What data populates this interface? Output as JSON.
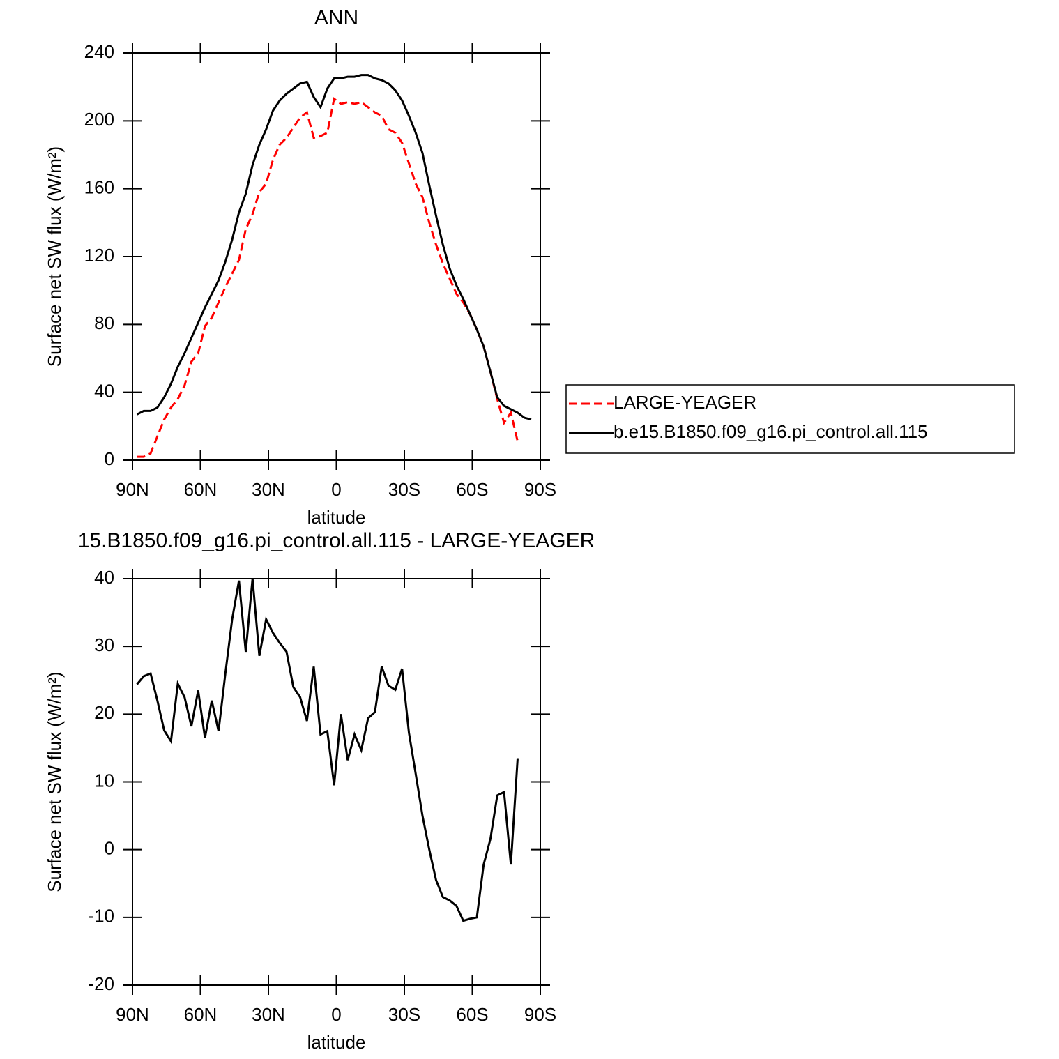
{
  "chart_data": [
    {
      "type": "line",
      "title": "ANN",
      "xlabel": "latitude",
      "ylabel": "Surface net SW flux (W/m²)",
      "x": [
        88,
        85,
        82,
        79,
        76,
        73,
        70,
        67,
        64,
        61,
        58,
        55,
        52,
        49,
        46,
        43,
        40,
        37,
        34,
        31,
        28,
        25,
        22,
        19,
        16,
        13,
        10,
        7,
        4,
        1,
        -2,
        -5,
        -8,
        -11,
        -14,
        -17,
        -20,
        -23,
        -26,
        -29,
        -32,
        -35,
        -38,
        -41,
        -44,
        -47,
        -50,
        -53,
        -56,
        -59,
        -62,
        -65,
        -68,
        -71,
        -74,
        -77,
        -80,
        -83,
        -86
      ],
      "xlim": [
        90,
        -90
      ],
      "xticks": [
        {
          "value": 90,
          "label": "90N"
        },
        {
          "value": 60,
          "label": "60N"
        },
        {
          "value": 30,
          "label": "30N"
        },
        0,
        {
          "value": -30,
          "label": "30S"
        },
        {
          "value": -60,
          "label": "60S"
        },
        {
          "value": -90,
          "label": "90S"
        }
      ],
      "ylim": [
        0,
        240
      ],
      "yticks": [
        0,
        40,
        80,
        120,
        160,
        200,
        240
      ],
      "legend": "right",
      "series": [
        {
          "name": "LARGE-YEAGER",
          "color": "#ff0000",
          "line_style": "dashed",
          "values": [
            2,
            2,
            4,
            14,
            24,
            31,
            36,
            44,
            58,
            63,
            79,
            84,
            93,
            102,
            110,
            118,
            136,
            145,
            158,
            163,
            177,
            186,
            190,
            196,
            202,
            205,
            190,
            191,
            193,
            213,
            210,
            211,
            210,
            211,
            208,
            205,
            203,
            195,
            193,
            187,
            175,
            163,
            155,
            140,
            127,
            116,
            107,
            98,
            93,
            86,
            77,
            67,
            52,
            36,
            22,
            28,
            11,
            null,
            null
          ]
        },
        {
          "name": "b.e15.B1850.f09_g16.pi_control.all.115",
          "color": "#000000",
          "line_style": "solid",
          "values": [
            27,
            29,
            29,
            31,
            37,
            45,
            55,
            63,
            72,
            81,
            90,
            98,
            106,
            117,
            130,
            146,
            157,
            174,
            186,
            195,
            206,
            212,
            216,
            219,
            222,
            223,
            214,
            208,
            219,
            225,
            225,
            226,
            226,
            227,
            227,
            225,
            224,
            222,
            218,
            212,
            203,
            193,
            181,
            162,
            144,
            127,
            113,
            103,
            95,
            86,
            77,
            67,
            52,
            37,
            32,
            30,
            28,
            25,
            24
          ]
        }
      ]
    },
    {
      "type": "line",
      "title": "15.B1850.f09_g16.pi_control.all.115 - LARGE-YEAGER",
      "xlabel": "latitude",
      "ylabel": "Surface net SW flux (W/m²)",
      "x": [
        88,
        85,
        82,
        79,
        76,
        73,
        70,
        67,
        64,
        61,
        58,
        55,
        52,
        49,
        46,
        43,
        40,
        37,
        34,
        31,
        28,
        25,
        22,
        19,
        16,
        13,
        10,
        7,
        4,
        1,
        -2,
        -5,
        -8,
        -11,
        -14,
        -17,
        -20,
        -23,
        -26,
        -29,
        -32,
        -35,
        -38,
        -41,
        -44,
        -47,
        -50,
        -53,
        -56,
        -59,
        -62,
        -65,
        -68,
        -71,
        -74,
        -77,
        -80,
        -83,
        -86
      ],
      "xlim": [
        90,
        -90
      ],
      "xticks": [
        {
          "value": 90,
          "label": "90N"
        },
        {
          "value": 60,
          "label": "60N"
        },
        {
          "value": 30,
          "label": "30N"
        },
        0,
        {
          "value": -30,
          "label": "30S"
        },
        {
          "value": -60,
          "label": "60S"
        },
        {
          "value": -90,
          "label": "90S"
        }
      ],
      "ylim": [
        -20,
        40
      ],
      "yticks": [
        -20,
        -10,
        0,
        10,
        20,
        30,
        40
      ],
      "series": [
        {
          "color": "#000000",
          "line_style": "solid",
          "values": [
            24.4,
            25.6,
            26,
            22,
            17.6,
            16,
            24.5,
            22.5,
            18.2,
            23.5,
            16.5,
            22,
            17.5,
            26,
            34,
            39.7,
            29.2,
            40,
            28.6,
            34,
            32,
            30.5,
            29.2,
            24,
            22.5,
            19,
            27,
            17,
            17.5,
            9.5,
            20,
            13.2,
            17,
            14.7,
            19.4,
            20.3,
            27,
            24.2,
            23.6,
            26.7,
            17.3,
            11.2,
            5,
            0,
            -4.5,
            -7,
            -7.5,
            -8.3,
            -10.5,
            -10.2,
            -10,
            -2.2,
            1.6,
            8,
            8.5,
            -2.2,
            13.5,
            null,
            null
          ]
        }
      ]
    }
  ]
}
